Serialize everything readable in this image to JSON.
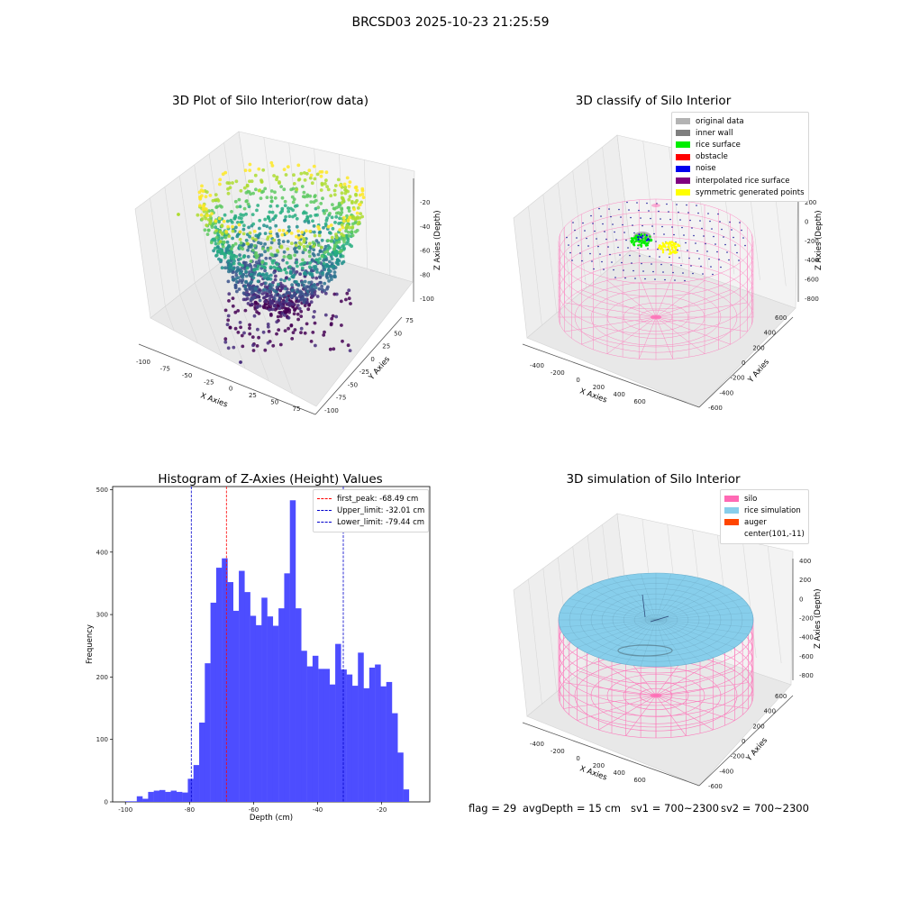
{
  "figure": {
    "suptitle": "BRCSD03 2025-10-23 21:25:59",
    "footer": {
      "flag": "flag = 29",
      "avg_depth": "avgDepth = 15 cm",
      "sv1": "sv1 = 700~2300",
      "sv2": "sv2 = 700~2300"
    }
  },
  "chart_data": [
    {
      "type": "scatter",
      "projection": "3d",
      "title": "3D Plot of Silo Interior(row data)",
      "xlabel": "X Axies",
      "ylabel": "Y Axies",
      "zlabel": "Z Axies (Depth)",
      "xlim": [
        -100,
        80
      ],
      "ylim": [
        -100,
        80
      ],
      "zlim": [
        -110,
        -10
      ],
      "xticks": [
        "-100",
        "-75",
        "-50",
        "-25",
        "0",
        "25",
        "50",
        "75"
      ],
      "yticks": [
        "-100",
        "-75",
        "-50",
        "-25",
        "0",
        "25",
        "50",
        "75"
      ],
      "zticks": [
        "-20",
        "-40",
        "-60",
        "-80",
        "-100"
      ],
      "colormap": "viridis",
      "description_points": "dense bowl-shaped cloud of points: rim near z=-20 (yellow), bottom near z=-100 (purple)",
      "sample_points": [
        {
          "x": -95,
          "y": 60,
          "z": -22
        },
        {
          "x": -60,
          "y": 75,
          "z": -21
        },
        {
          "x": 0,
          "y": 80,
          "z": -18
        },
        {
          "x": 55,
          "y": 70,
          "z": -22
        },
        {
          "x": 75,
          "y": 20,
          "z": -24
        },
        {
          "x": 60,
          "y": -40,
          "z": -30
        },
        {
          "x": 0,
          "y": -60,
          "z": -45
        },
        {
          "x": -50,
          "y": -40,
          "z": -55
        },
        {
          "x": -20,
          "y": 0,
          "z": -80
        },
        {
          "x": 10,
          "y": 10,
          "z": -95
        },
        {
          "x": -10,
          "y": -10,
          "z": -100
        }
      ]
    },
    {
      "type": "scatter",
      "projection": "3d",
      "title": "3D classify of Silo Interior",
      "xlabel": "X Axies",
      "ylabel": "Y Axies",
      "zlabel": "Z Axies (Depth)",
      "xticks": [
        "-400",
        "-200",
        "0",
        "200",
        "400",
        "600"
      ],
      "yticks": [
        "-600",
        "-400",
        "-200",
        "0",
        "200",
        "400",
        "600"
      ],
      "zticks": [
        "200",
        "0",
        "-200",
        "-400",
        "-600",
        "-800"
      ],
      "legend_position": "top-right",
      "series": [
        {
          "name": "original data",
          "color": "#b3b3b3"
        },
        {
          "name": "inner wall",
          "color": "#7f7f7f"
        },
        {
          "name": "rice surface",
          "color": "#00ee00"
        },
        {
          "name": "obstacle",
          "color": "#ff0000"
        },
        {
          "name": "noise",
          "color": "#0000ee"
        },
        {
          "name": "interpolated rice surface",
          "color": "#800080"
        },
        {
          "name": "symmetric generated points",
          "color": "#ffff00"
        }
      ]
    },
    {
      "type": "bar",
      "title": "Histogram of Z-Axies (Height) Values",
      "xlabel": "Depth (cm)",
      "ylabel": "Frequency",
      "xlim": [
        -104,
        -5
      ],
      "ylim": [
        0,
        505
      ],
      "xticks": [
        -100,
        -80,
        -60,
        -40,
        -20
      ],
      "yticks": [
        0,
        100,
        200,
        300,
        400,
        500
      ],
      "bar_color": "#4d4dff",
      "bin_start": -100,
      "bin_width": 1.77,
      "values": [
        1,
        1,
        9,
        5,
        16,
        18,
        19,
        16,
        18,
        16,
        15,
        37,
        59,
        127,
        222,
        319,
        375,
        390,
        352,
        306,
        370,
        336,
        298,
        283,
        327,
        297,
        282,
        310,
        366,
        483,
        310,
        242,
        217,
        234,
        213,
        213,
        188,
        253,
        212,
        204,
        186,
        239,
        182,
        215,
        220,
        185,
        192,
        142,
        79,
        20
      ],
      "vlines": [
        {
          "label": "first_peak: -68.49 cm",
          "x": -68.49,
          "color": "#ff0000"
        },
        {
          "label": "Upper_limit: -32.01 cm",
          "x": -32.01,
          "color": "#0000cc"
        },
        {
          "label": "Lower_limit: -79.44 cm",
          "x": -79.44,
          "color": "#0000cc"
        }
      ],
      "legend_position": "top-right"
    },
    {
      "type": "surface",
      "projection": "3d",
      "title": "3D simulation of Silo Interior",
      "xlabel": "X Axies",
      "ylabel": "Y Axies",
      "zlabel": "Z Axies (Depth)",
      "xticks": [
        "-400",
        "-200",
        "0",
        "200",
        "400",
        "600"
      ],
      "yticks": [
        "-600",
        "-400",
        "-200",
        "0",
        "200",
        "400",
        "600"
      ],
      "zticks": [
        "400",
        "200",
        "0",
        "-200",
        "-400",
        "-600",
        "-800"
      ],
      "legend_position": "top-right",
      "series": [
        {
          "name": "silo",
          "color": "#ff69b4"
        },
        {
          "name": "rice simulation",
          "color": "#87ceeb"
        },
        {
          "name": "auger",
          "color": "#ff4500"
        },
        {
          "name": "center(101,-11)",
          "color": "none"
        }
      ]
    }
  ]
}
